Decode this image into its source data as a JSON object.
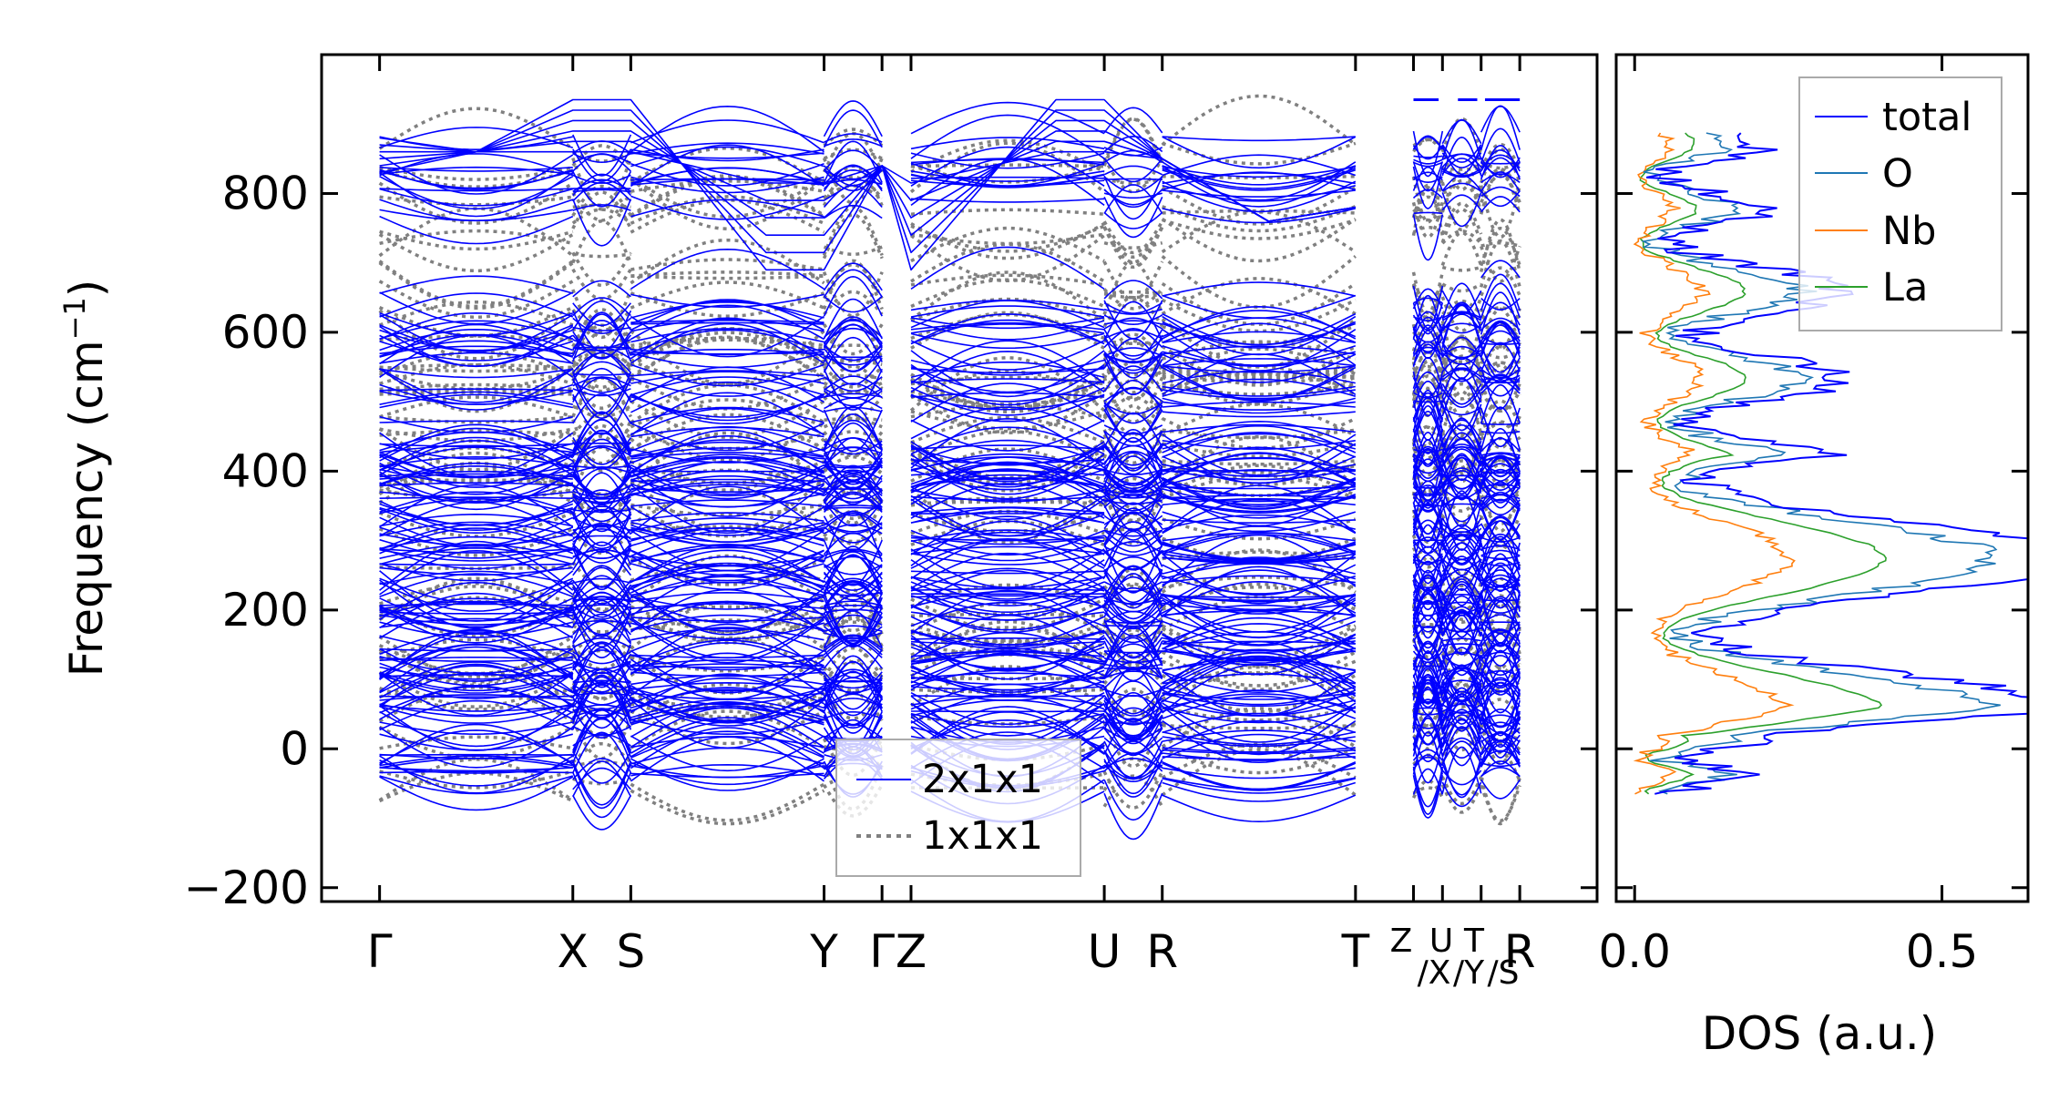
{
  "chart_data": [
    {
      "type": "line",
      "subtype": "phonon-band-structure",
      "ylabel": "Frequency (cm",
      "ylabel_sup": "−1",
      "ylabel_close": ")",
      "ylim": [
        -220,
        1000
      ],
      "yticks": [
        -200,
        0,
        200,
        400,
        600,
        800
      ],
      "ytick_labels": [
        "−200",
        "0",
        "200",
        "400",
        "600",
        "800"
      ],
      "xticks": [
        {
          "label": "Γ",
          "x": 0.0
        },
        {
          "label": "X",
          "x": 1.0
        },
        {
          "label": "S",
          "x": 1.3
        },
        {
          "label": "Y",
          "x": 2.3
        },
        {
          "label": "Γ",
          "x": 2.6
        },
        {
          "label": "Z",
          "x": 2.75
        },
        {
          "label": "U",
          "x": 3.75
        },
        {
          "label": "R",
          "x": 4.05
        },
        {
          "label": "T",
          "x": 5.05
        },
        {
          "label": "Z",
          "x": 5.35
        },
        {
          "label": "U",
          "x": 5.5
        },
        {
          "label": "T",
          "x": 5.7
        },
        {
          "label": "R",
          "x": 5.9
        }
      ],
      "segment_labels": [
        "Z",
        "U",
        "/X",
        "T",
        "/Y",
        "/S",
        "R"
      ],
      "xlim": [
        -0.3,
        6.3
      ],
      "series": [
        {
          "name": "2x1x1",
          "color": "#0000ff",
          "style": "solid"
        },
        {
          "name": "1x1x1",
          "color": "#808080",
          "style": "dotted"
        }
      ],
      "legend_position": "bottom-center"
    },
    {
      "type": "line",
      "subtype": "density-of-states",
      "xlabel": "DOS (a.u.)",
      "xlim": [
        -0.03,
        0.64
      ],
      "xticks": [
        0.0,
        0.5
      ],
      "xtick_labels": [
        "0.0",
        "0.5"
      ],
      "ylim": [
        -220,
        1000
      ],
      "series": [
        {
          "name": "total",
          "color": "#0000ff"
        },
        {
          "name": "O",
          "color": "#1f77b4"
        },
        {
          "name": "Nb",
          "color": "#ff7f0e"
        },
        {
          "name": "La",
          "color": "#2ca02c"
        }
      ],
      "legend_position": "top-right"
    }
  ]
}
